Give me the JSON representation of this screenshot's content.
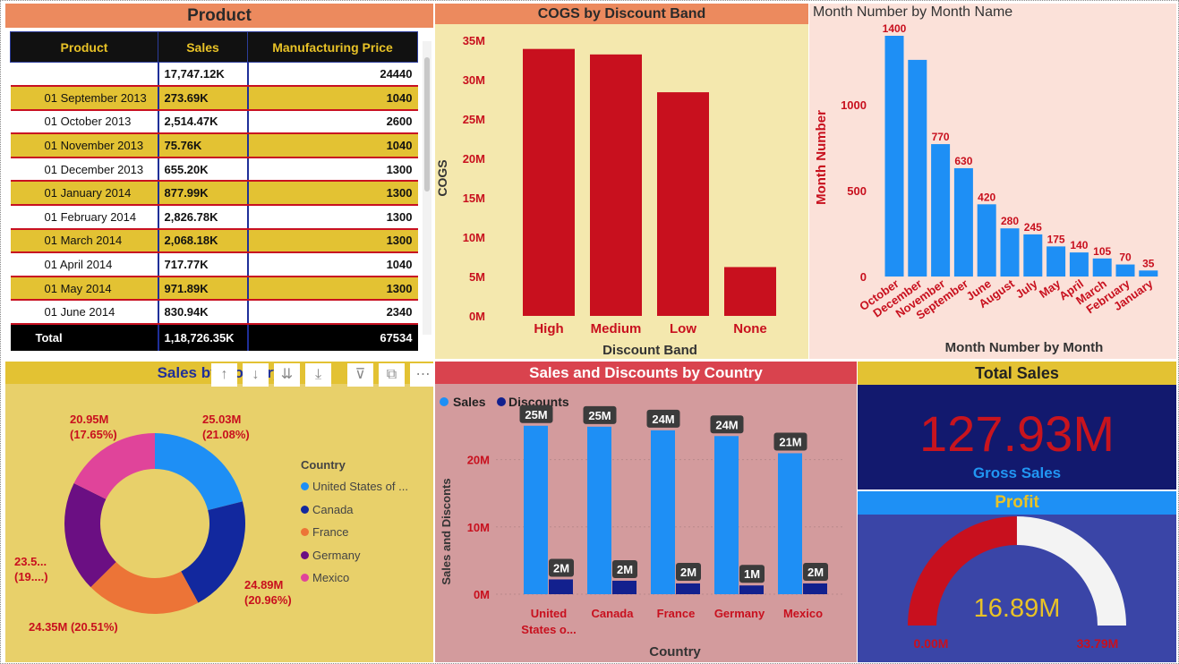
{
  "product": {
    "title": "Product",
    "headers": [
      "Product",
      "Sales",
      "Manufacturing Price"
    ],
    "aggregate_row": [
      "",
      "17,747.12K",
      "24440"
    ],
    "rows": [
      [
        "01 September 2013",
        "273.69K",
        "1040"
      ],
      [
        "01 October 2013",
        "2,514.47K",
        "2600"
      ],
      [
        "01 November 2013",
        "75.76K",
        "1040"
      ],
      [
        "01 December 2013",
        "655.20K",
        "1300"
      ],
      [
        "01 January 2014",
        "877.99K",
        "1300"
      ],
      [
        "01 February 2014",
        "2,826.78K",
        "1300"
      ],
      [
        "01 March 2014",
        "2,068.18K",
        "1300"
      ],
      [
        "01 April 2014",
        "717.77K",
        "1040"
      ],
      [
        "01 May 2014",
        "971.89K",
        "1300"
      ],
      [
        "01 June 2014",
        "830.94K",
        "2340"
      ]
    ],
    "total_row": [
      "Total",
      "1,18,726.35K",
      "67534"
    ]
  },
  "toolbar": {
    "icons": [
      "arrow-up-icon",
      "arrow-down-icon",
      "double-arrow-down-icon",
      "expand-hierarchy-icon",
      "filter-icon",
      "focus-mode-icon",
      "more-options-icon"
    ],
    "glyphs": [
      "↑",
      "↓",
      "⇊",
      "⤓",
      "⊽",
      "⧉",
      "⋯"
    ]
  },
  "kpi": {
    "total_sales_title": "Total Sales",
    "total_sales_value": "127.93M",
    "total_sales_label": "Gross Sales",
    "profit_title": "Profit"
  },
  "colors": {
    "cogs_bar": "#C8101E",
    "month_bar": "#1E8FF5",
    "month_label": "#C8101E",
    "sales_bar": "#1E8FF5",
    "discount_bar": "#12208E",
    "gauge_fill": "#C8101E",
    "gauge_track": "#F3F3F3"
  },
  "chart_data": [
    {
      "id": "cogs",
      "type": "bar",
      "title": "COGS by Discount Band",
      "xlabel": "Discount Band",
      "ylabel": "COGS",
      "categories": [
        "High",
        "Medium",
        "Low",
        "None"
      ],
      "values": [
        33.9,
        33.2,
        28.4,
        6.2
      ],
      "ylim": [
        0,
        35
      ],
      "yticks": [
        "0M",
        "5M",
        "10M",
        "15M",
        "20M",
        "25M",
        "30M",
        "35M"
      ],
      "grid": false
    },
    {
      "id": "month",
      "type": "bar",
      "title": "Month Number by Month Name",
      "xlabel": "Month Number by Month",
      "ylabel": "Month Number",
      "categories": [
        "October",
        "December",
        "November",
        "September",
        "June",
        "August",
        "July",
        "May",
        "April",
        "March",
        "February",
        "January"
      ],
      "values": [
        1400,
        1260,
        770,
        630,
        420,
        280,
        245,
        175,
        140,
        105,
        70,
        35
      ],
      "data_labels": [
        "1400",
        "",
        "770",
        "630",
        "420",
        "280",
        "245",
        "175",
        "140",
        "105",
        "70",
        "35"
      ],
      "ylim": [
        0,
        1400
      ],
      "yticks": [
        0,
        500,
        1000
      ],
      "grid": false
    },
    {
      "id": "sales-by-country",
      "type": "pie",
      "donut": true,
      "title": "Sales by Country",
      "legend_title": "Country",
      "legend_position": "right",
      "legend": [
        "United States of ...",
        "Canada",
        "France",
        "Germany",
        "Mexico"
      ],
      "series": [
        {
          "name": "United States of America",
          "value": 25.03,
          "label": "25.03M",
          "pct": "(21.08%)",
          "color": "#1E8FF5"
        },
        {
          "name": "Canada",
          "value": 24.89,
          "label": "24.89M",
          "pct": "(20.96%)",
          "color": "#12289E"
        },
        {
          "name": "France",
          "value": 24.35,
          "label": "24.35M (20.51%)",
          "pct": "",
          "color": "#EC7437"
        },
        {
          "name": "Germany",
          "value": 23.5,
          "label": "23.5...",
          "pct": "(19....)",
          "color": "#6B0F83"
        },
        {
          "name": "Mexico",
          "value": 20.95,
          "label": "20.95M",
          "pct": "(17.65%)",
          "color": "#E0449A"
        }
      ]
    },
    {
      "id": "sales-discounts",
      "type": "bar",
      "title": "Sales and Discounts by Country",
      "xlabel": "Country",
      "ylabel": "Sales and Disconts",
      "legend_position": "top-left",
      "categories": [
        "United States o...",
        "Canada",
        "France",
        "Germany",
        "Mexico"
      ],
      "series": [
        {
          "name": "Sales",
          "values": [
            25.03,
            24.89,
            24.35,
            23.5,
            20.95
          ],
          "labels": [
            "25M",
            "25M",
            "24M",
            "24M",
            "21M"
          ]
        },
        {
          "name": "Discounts",
          "values": [
            2.2,
            2.0,
            1.6,
            1.3,
            1.6
          ],
          "labels": [
            "2M",
            "2M",
            "2M",
            "1M",
            "2M"
          ]
        }
      ],
      "ylim": [
        0,
        25
      ],
      "yticks": [
        "0M",
        "10M",
        "20M"
      ],
      "grid": true
    },
    {
      "id": "profit-gauge",
      "type": "gauge",
      "value": 16.89,
      "value_label": "16.89M",
      "min": 0,
      "max": 33.79,
      "min_label": "0.00M",
      "max_label": "33.79M"
    }
  ]
}
